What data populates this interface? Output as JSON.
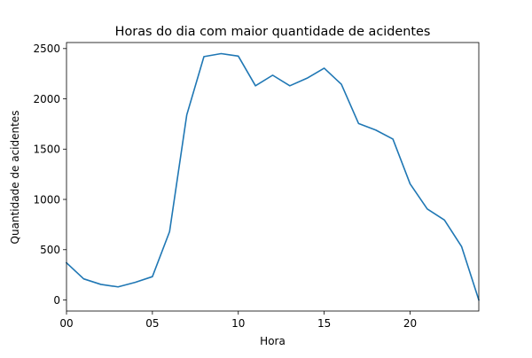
{
  "chart_data": {
    "type": "line",
    "title": "Horas do dia com maior quantidade de acidentes",
    "xlabel": "Hora",
    "ylabel": "Quantidade de acidentes",
    "xlim": [
      0,
      24
    ],
    "ylim": [
      -110,
      2560
    ],
    "x_ticks": [
      0,
      5,
      10,
      15,
      20
    ],
    "x_tick_labels": [
      "00",
      "05",
      "10",
      "15",
      "20"
    ],
    "y_ticks": [
      0,
      500,
      1000,
      1500,
      2000,
      2500
    ],
    "y_tick_labels": [
      "0",
      "500",
      "1000",
      "1500",
      "2000",
      "2500"
    ],
    "grid": false,
    "line_color": "#1f77b4",
    "series": [
      {
        "x": [
          0,
          1,
          2,
          3,
          4,
          5,
          6,
          7,
          8,
          9,
          10,
          11,
          12,
          13,
          14,
          15,
          16,
          17,
          18,
          19,
          20,
          21,
          22,
          23,
          24
        ],
        "values": [
          370,
          210,
          155,
          130,
          175,
          232,
          680,
          1840,
          2420,
          2450,
          2425,
          2130,
          2235,
          2130,
          2205,
          2305,
          2145,
          1755,
          1690,
          1600,
          1155,
          905,
          795,
          530,
          0
        ]
      }
    ]
  }
}
